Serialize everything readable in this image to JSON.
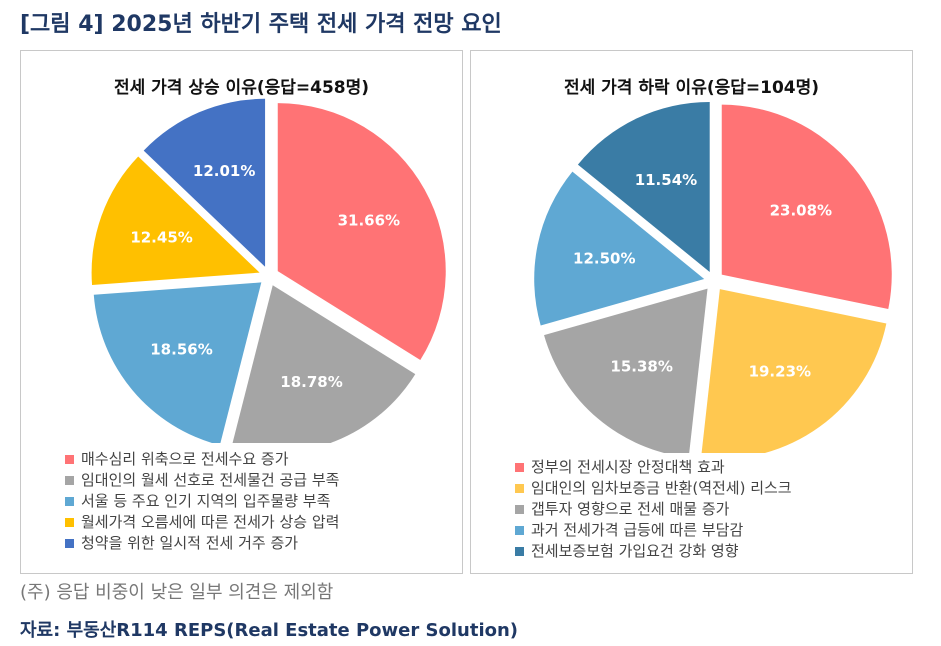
{
  "figure_title": "[그림 4] 2025년 하반기 주택 전세 가격 전망 요인",
  "note": "(주) 응답 비중이 낮은 일부 의견은 제외함",
  "source": "자료: 부동산R114 REPS(Real Estate Power Solution)",
  "chart_data": [
    {
      "type": "pie",
      "title": "전세 가격 상승 이유(응답=458명)",
      "categories": [
        "매수심리 위축으로 전세수요 증가",
        "임대인의 월세 선호로 전세물건 공급 부족",
        "서울 등 주요 인기 지역의 입주물량 부족",
        "월세가격 오름세에 따른 전세가 상승 압력",
        "청약을 위한 일시적 전세 거주 증가"
      ],
      "values": [
        31.66,
        18.78,
        18.56,
        12.45,
        12.01
      ],
      "labels": [
        "31.66%",
        "18.78%",
        "18.56%",
        "12.45%",
        "12.01%"
      ],
      "colors": [
        "#ff7375",
        "#a5a5a5",
        "#5fa8d3",
        "#ffc000",
        "#4472c4"
      ],
      "legend": "bottom"
    },
    {
      "type": "pie",
      "title": "전세 가격 하락 이유(응답=104명)",
      "categories": [
        "정부의 전세시장 안정대책 효과",
        "임대인의 임차보증금 반환(역전세) 리스크",
        "갭투자 영향으로 전세 매물 증가",
        "과거 전세가격 급등에 따른 부담감",
        "전세보증보험 가입요건 강화 영향"
      ],
      "values": [
        23.08,
        19.23,
        15.38,
        12.5,
        11.54
      ],
      "labels": [
        "23.08%",
        "19.23%",
        "15.38%",
        "12.50%",
        "11.54%"
      ],
      "colors": [
        "#ff7375",
        "#ffc850",
        "#a5a5a5",
        "#5fa8d3",
        "#3a7ca5"
      ],
      "legend": "bottom"
    }
  ]
}
